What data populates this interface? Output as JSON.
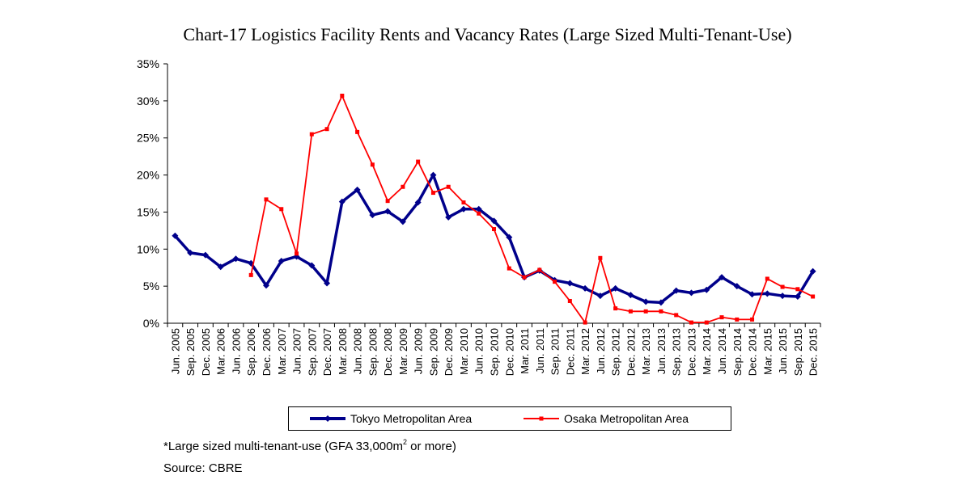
{
  "title": "Chart-17 Logistics Facility Rents and Vacancy Rates (Large Sized Multi-Tenant-Use)",
  "notes": {
    "line1_prefix": "*Large sized multi-tenant-use (GFA 33,000m",
    "line1_sup": "2",
    "line1_suffix": " or more)",
    "source": "Source: CBRE"
  },
  "chart_data": {
    "type": "line",
    "title": "Chart-17 Logistics Facility Rents and Vacancy Rates (Large Sized Multi-Tenant-Use)",
    "xlabel": "",
    "ylabel": "",
    "ylim": [
      0,
      35
    ],
    "yticks": [
      "0%",
      "5%",
      "10%",
      "15%",
      "20%",
      "25%",
      "30%",
      "35%"
    ],
    "grid": false,
    "legend": "bottom",
    "categories": [
      "Jun. 2005",
      "Sep. 2005",
      "Dec. 2005",
      "Mar. 2006",
      "Jun. 2006",
      "Sep. 2006",
      "Dec. 2006",
      "Mar. 2007",
      "Jun. 2007",
      "Sep. 2007",
      "Dec. 2007",
      "Mar. 2008",
      "Jun. 2008",
      "Sep. 2008",
      "Dec. 2008",
      "Mar. 2009",
      "Jun. 2009",
      "Sep. 2009",
      "Dec. 2009",
      "Mar. 2010",
      "Jun. 2010",
      "Sep. 2010",
      "Dec. 2010",
      "Mar. 2011",
      "Jun. 2011",
      "Sep. 2011",
      "Dec. 2011",
      "Mar. 2012",
      "Jun. 2012",
      "Sep. 2012",
      "Dec. 2012",
      "Mar. 2013",
      "Jun. 2013",
      "Sep. 2013",
      "Dec. 2013",
      "Mar. 2014",
      "Jun. 2014",
      "Sep. 2014",
      "Dec. 2014",
      "Mar. 2015",
      "Jun. 2015",
      "Sep. 2015",
      "Dec. 2015"
    ],
    "series": [
      {
        "name": "Tokyo Metropolitan Area",
        "color": "#00008b",
        "marker": "diamond",
        "values": [
          11.8,
          9.5,
          9.2,
          7.6,
          8.7,
          8.1,
          5.1,
          8.4,
          9.0,
          7.8,
          5.4,
          16.4,
          18.0,
          14.6,
          15.1,
          13.7,
          16.3,
          20.0,
          14.3,
          15.4,
          15.4,
          13.8,
          11.6,
          6.2,
          7.1,
          5.8,
          5.4,
          4.7,
          3.7,
          4.7,
          3.8,
          2.9,
          2.8,
          4.4,
          4.1,
          4.5,
          6.2,
          5.0,
          3.9,
          4.0,
          3.7,
          3.6,
          7.0
        ]
      },
      {
        "name": "Osaka Metropolitan Area",
        "color": "#ff0000",
        "marker": "square",
        "values": [
          null,
          null,
          null,
          null,
          null,
          6.5,
          16.7,
          15.4,
          9.4,
          25.5,
          26.2,
          30.7,
          25.8,
          21.4,
          16.5,
          18.4,
          21.8,
          17.6,
          18.4,
          16.3,
          14.8,
          12.7,
          7.4,
          6.2,
          7.2,
          5.6,
          3.0,
          0.1,
          8.8,
          2.0,
          1.6,
          1.6,
          1.6,
          1.1,
          0.1,
          0.1,
          0.8,
          0.5,
          0.5,
          6.0,
          4.9,
          4.6,
          3.6
        ]
      }
    ]
  }
}
